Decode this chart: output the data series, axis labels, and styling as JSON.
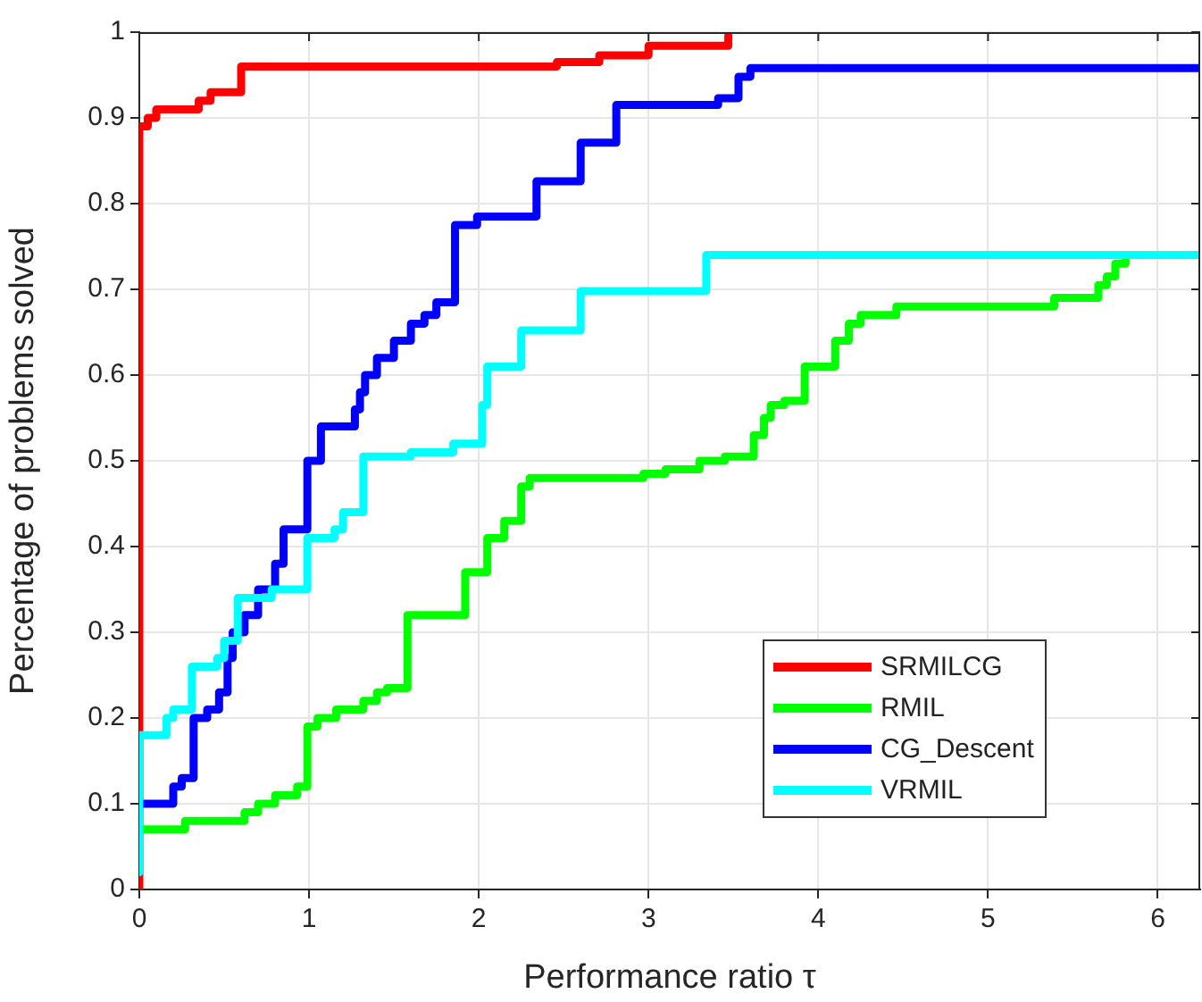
{
  "chart_data": {
    "type": "step",
    "xlabel": "Performance ratio τ",
    "ylabel": "Percentage of problems solved",
    "xlim": [
      0,
      6.25
    ],
    "xticks": [
      0,
      1,
      2,
      3,
      4,
      5,
      6
    ],
    "ylim": [
      0,
      1
    ],
    "yticks": [
      0,
      0.1,
      0.2,
      0.3,
      0.4,
      0.5,
      0.6,
      0.7,
      0.8,
      0.9,
      1
    ],
    "grid": true,
    "legend": "bottom right",
    "line_style": "solid",
    "marker": "none",
    "series": [
      {
        "name": "SRMILCG",
        "color": "#ff0000",
        "x": [
          0,
          0,
          0.05,
          0.1,
          0.35,
          0.42,
          0.6,
          2.46,
          2.71,
          3.0,
          3.47
        ],
        "values": [
          0,
          0.89,
          0.9,
          0.91,
          0.92,
          0.93,
          0.96,
          0.965,
          0.973,
          0.984,
          0.996
        ]
      },
      {
        "name": "RMIL",
        "color": "#00ff00",
        "x": [
          0,
          0.27,
          0.62,
          0.7,
          0.8,
          0.93,
          0.99,
          1.05,
          1.16,
          1.32,
          1.4,
          1.46,
          1.58,
          1.92,
          2.05,
          2.15,
          2.25,
          2.3,
          2.97,
          3.1,
          3.3,
          3.45,
          3.62,
          3.68,
          3.72,
          3.8,
          3.92,
          4.1,
          4.18,
          4.25,
          4.46,
          5.39,
          5.65,
          5.7,
          5.75,
          5.81
        ],
        "values": [
          0.07,
          0.08,
          0.09,
          0.1,
          0.11,
          0.12,
          0.19,
          0.2,
          0.21,
          0.22,
          0.23,
          0.235,
          0.32,
          0.37,
          0.41,
          0.43,
          0.47,
          0.48,
          0.485,
          0.49,
          0.5,
          0.505,
          0.53,
          0.55,
          0.565,
          0.57,
          0.61,
          0.64,
          0.66,
          0.67,
          0.68,
          0.69,
          0.705,
          0.715,
          0.73,
          0.74
        ]
      },
      {
        "name": "CG_Descent",
        "color": "#0000ff",
        "x": [
          0,
          0.2,
          0.25,
          0.32,
          0.4,
          0.47,
          0.52,
          0.55,
          0.62,
          0.7,
          0.8,
          0.85,
          0.99,
          1.07,
          1.27,
          1.3,
          1.33,
          1.4,
          1.5,
          1.6,
          1.68,
          1.75,
          1.86,
          1.99,
          2.34,
          2.6,
          2.81,
          3.41,
          3.53,
          3.6,
          6.25
        ],
        "values": [
          0.1,
          0.12,
          0.13,
          0.2,
          0.21,
          0.23,
          0.27,
          0.3,
          0.32,
          0.35,
          0.38,
          0.42,
          0.5,
          0.54,
          0.56,
          0.58,
          0.6,
          0.62,
          0.64,
          0.66,
          0.67,
          0.685,
          0.775,
          0.785,
          0.826,
          0.871,
          0.915,
          0.923,
          0.948,
          0.958,
          0.958
        ]
      },
      {
        "name": "VRMIL",
        "color": "#00ffff",
        "x": [
          0,
          0,
          0.16,
          0.2,
          0.31,
          0.46,
          0.5,
          0.58,
          0.78,
          0.99,
          1.15,
          1.2,
          1.32,
          1.6,
          1.85,
          2.02,
          2.05,
          2.25,
          2.6,
          3.34,
          6.25
        ],
        "values": [
          0.02,
          0.18,
          0.2,
          0.21,
          0.26,
          0.27,
          0.29,
          0.34,
          0.35,
          0.41,
          0.42,
          0.44,
          0.505,
          0.51,
          0.52,
          0.565,
          0.61,
          0.652,
          0.698,
          0.74,
          0.74
        ]
      }
    ]
  }
}
